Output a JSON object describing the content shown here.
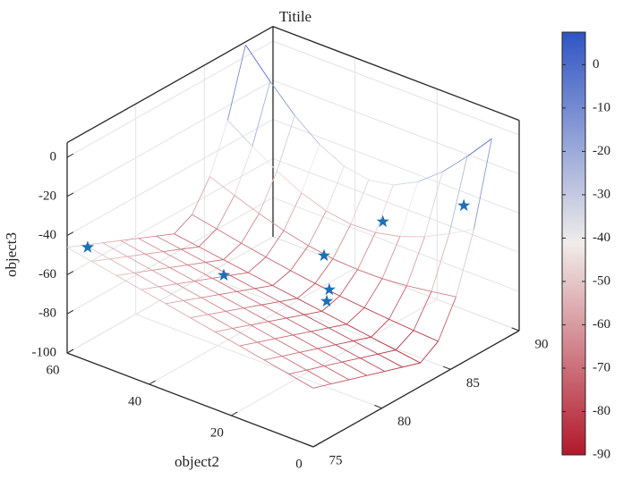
{
  "chart_data": {
    "type": "surface",
    "title": "Titile",
    "ylabel": "object2",
    "zlabel": "object3",
    "x": [
      75,
      76.3,
      77.6,
      78.9,
      80.2,
      81.5,
      82.8,
      84.1,
      85.4,
      86.7,
      88
    ],
    "y": [
      0,
      6,
      12,
      18,
      24,
      30,
      36,
      42,
      48,
      54,
      60
    ],
    "z": [
      [
        -70,
        -73,
        -76,
        -79,
        -82,
        -85,
        -88,
        -82.1,
        -64.5,
        -35.1,
        6
      ],
      [
        -67.6,
        -70.7,
        -73.8,
        -76.9,
        -80,
        -83.1,
        -86.2,
        -81.3,
        -66.6,
        -42.2,
        -7.9
      ],
      [
        -65.2,
        -68.4,
        -71.6,
        -74.8,
        -78,
        -81.2,
        -84.4,
        -80.4,
        -68.4,
        -48.5,
        -20.5
      ],
      [
        -62.8,
        -66.1,
        -69.4,
        -72.7,
        -76,
        -79.3,
        -82.6,
        -79.3,
        -69.6,
        -53.2,
        -30.4
      ],
      [
        -60.4,
        -63.8,
        -67.2,
        -70.6,
        -74,
        -77.4,
        -80.8,
        -78.1,
        -69.8,
        -56,
        -36.8
      ],
      [
        -58,
        -61.5,
        -65,
        -68.5,
        -72,
        -75.5,
        -79,
        -76.5,
        -69,
        -56.5,
        -39
      ],
      [
        -55.6,
        -59.2,
        -62.8,
        -66.4,
        -70,
        -73.6,
        -77.2,
        -74.7,
        -67.1,
        -54.5,
        -36.8
      ],
      [
        -53.2,
        -56.9,
        -60.6,
        -64.3,
        -68,
        -71.7,
        -75.4,
        -72.6,
        -64.2,
        -50.1,
        -30.4
      ],
      [
        -50.8,
        -54.6,
        -58.4,
        -62.2,
        -66,
        -69.8,
        -73.6,
        -70.3,
        -60.3,
        -43.7,
        -20.5
      ],
      [
        -48.4,
        -52.3,
        -56.2,
        -60.1,
        -64,
        -67.9,
        -71.8,
        -67.8,
        -55.8,
        -35.9,
        -7.9
      ],
      [
        -46,
        -50,
        -54,
        -58,
        -62,
        -66,
        -70,
        -65.3,
        -51,
        -27.3,
        6
      ]
    ],
    "xlim": [
      75,
      90
    ],
    "xticks": [
      75,
      80,
      85,
      90
    ],
    "ylim": [
      0,
      60
    ],
    "yticks": [
      0,
      20,
      40,
      60
    ],
    "zlim": [
      -100,
      7.5
    ],
    "zticks": [
      -100,
      -80,
      -60,
      -40,
      -20,
      0
    ],
    "grid": true,
    "colorbar": {
      "lim": [
        -90,
        7.5
      ],
      "ticks": [
        0,
        -10,
        -20,
        -30,
        -40,
        -50,
        -60,
        -70,
        -80,
        -90
      ],
      "colors": [
        "#b2182b",
        "#f0ecea",
        "#2f55c4"
      ]
    },
    "scatter": {
      "color": "#1f6fb5",
      "x": [
        75,
        77,
        82,
        82.5,
        82.5,
        85,
        88
      ],
      "y": [
        55,
        28.5,
        20.8,
        21.2,
        21.8,
        16.5,
        6.8
      ],
      "z": [
        -42,
        -43,
        -46.6,
        -66.3,
        -72.7,
        -37.7,
        -33.6
      ]
    }
  }
}
